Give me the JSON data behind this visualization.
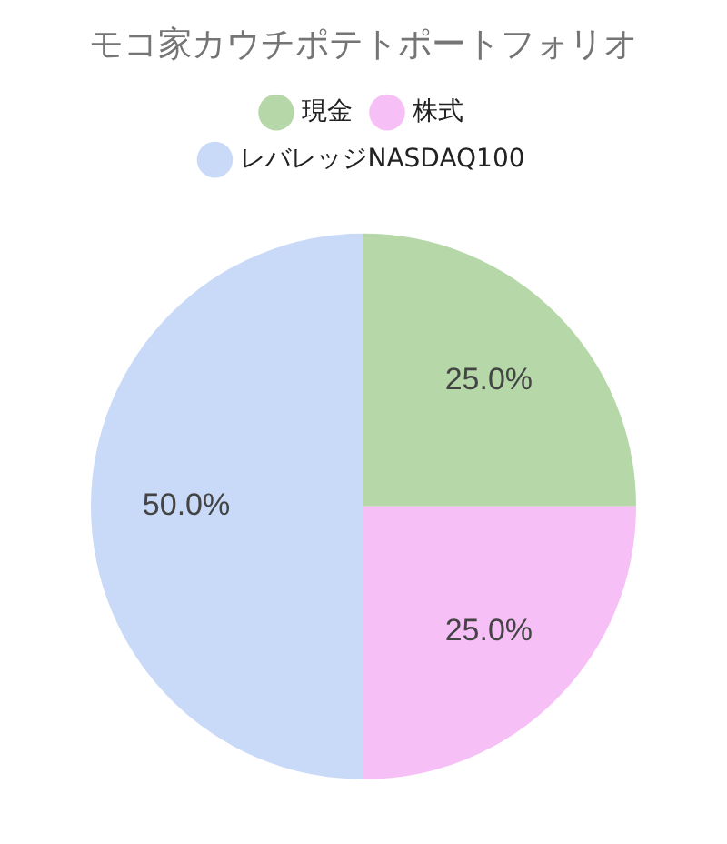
{
  "chart_data": {
    "type": "pie",
    "title": "モコ家カウチポテトポートフォリオ",
    "categories": [
      "現金",
      "株式",
      "レバレッジNASDAQ100"
    ],
    "values": [
      25,
      25,
      50
    ],
    "colors": [
      "#b6d7a8",
      "#f6c0f6",
      "#c9daf8"
    ],
    "value_labels": [
      "25.0%",
      "25.0%",
      "50.0%"
    ],
    "legend": "top"
  }
}
